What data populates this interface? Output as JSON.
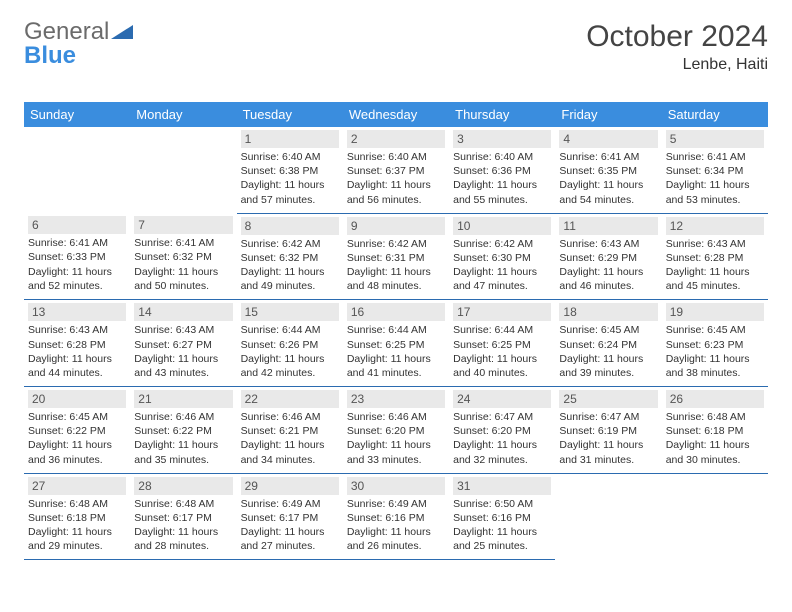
{
  "brand": {
    "word1": "General",
    "word2": "Blue"
  },
  "title": {
    "month": "October 2024",
    "location": "Lenbe, Haiti"
  },
  "colors": {
    "header_bg": "#3a8dde",
    "header_text": "#ffffff",
    "day_border": "#2b6bb0",
    "daynum_bg": "#e9e9e9",
    "body_text": "#333333",
    "logo_gray": "#6b6b6b",
    "logo_blue": "#3a8dde"
  },
  "columns": [
    "Sunday",
    "Monday",
    "Tuesday",
    "Wednesday",
    "Thursday",
    "Friday",
    "Saturday"
  ],
  "weeks": [
    [
      null,
      null,
      {
        "n": "1",
        "sr": "Sunrise: 6:40 AM",
        "ss": "Sunset: 6:38 PM",
        "dl": "Daylight: 11 hours and 57 minutes."
      },
      {
        "n": "2",
        "sr": "Sunrise: 6:40 AM",
        "ss": "Sunset: 6:37 PM",
        "dl": "Daylight: 11 hours and 56 minutes."
      },
      {
        "n": "3",
        "sr": "Sunrise: 6:40 AM",
        "ss": "Sunset: 6:36 PM",
        "dl": "Daylight: 11 hours and 55 minutes."
      },
      {
        "n": "4",
        "sr": "Sunrise: 6:41 AM",
        "ss": "Sunset: 6:35 PM",
        "dl": "Daylight: 11 hours and 54 minutes."
      },
      {
        "n": "5",
        "sr": "Sunrise: 6:41 AM",
        "ss": "Sunset: 6:34 PM",
        "dl": "Daylight: 11 hours and 53 minutes."
      }
    ],
    [
      {
        "n": "6",
        "sr": "Sunrise: 6:41 AM",
        "ss": "Sunset: 6:33 PM",
        "dl": "Daylight: 11 hours and 52 minutes."
      },
      {
        "n": "7",
        "sr": "Sunrise: 6:41 AM",
        "ss": "Sunset: 6:32 PM",
        "dl": "Daylight: 11 hours and 50 minutes."
      },
      {
        "n": "8",
        "sr": "Sunrise: 6:42 AM",
        "ss": "Sunset: 6:32 PM",
        "dl": "Daylight: 11 hours and 49 minutes."
      },
      {
        "n": "9",
        "sr": "Sunrise: 6:42 AM",
        "ss": "Sunset: 6:31 PM",
        "dl": "Daylight: 11 hours and 48 minutes."
      },
      {
        "n": "10",
        "sr": "Sunrise: 6:42 AM",
        "ss": "Sunset: 6:30 PM",
        "dl": "Daylight: 11 hours and 47 minutes."
      },
      {
        "n": "11",
        "sr": "Sunrise: 6:43 AM",
        "ss": "Sunset: 6:29 PM",
        "dl": "Daylight: 11 hours and 46 minutes."
      },
      {
        "n": "12",
        "sr": "Sunrise: 6:43 AM",
        "ss": "Sunset: 6:28 PM",
        "dl": "Daylight: 11 hours and 45 minutes."
      }
    ],
    [
      {
        "n": "13",
        "sr": "Sunrise: 6:43 AM",
        "ss": "Sunset: 6:28 PM",
        "dl": "Daylight: 11 hours and 44 minutes."
      },
      {
        "n": "14",
        "sr": "Sunrise: 6:43 AM",
        "ss": "Sunset: 6:27 PM",
        "dl": "Daylight: 11 hours and 43 minutes."
      },
      {
        "n": "15",
        "sr": "Sunrise: 6:44 AM",
        "ss": "Sunset: 6:26 PM",
        "dl": "Daylight: 11 hours and 42 minutes."
      },
      {
        "n": "16",
        "sr": "Sunrise: 6:44 AM",
        "ss": "Sunset: 6:25 PM",
        "dl": "Daylight: 11 hours and 41 minutes."
      },
      {
        "n": "17",
        "sr": "Sunrise: 6:44 AM",
        "ss": "Sunset: 6:25 PM",
        "dl": "Daylight: 11 hours and 40 minutes."
      },
      {
        "n": "18",
        "sr": "Sunrise: 6:45 AM",
        "ss": "Sunset: 6:24 PM",
        "dl": "Daylight: 11 hours and 39 minutes."
      },
      {
        "n": "19",
        "sr": "Sunrise: 6:45 AM",
        "ss": "Sunset: 6:23 PM",
        "dl": "Daylight: 11 hours and 38 minutes."
      }
    ],
    [
      {
        "n": "20",
        "sr": "Sunrise: 6:45 AM",
        "ss": "Sunset: 6:22 PM",
        "dl": "Daylight: 11 hours and 36 minutes."
      },
      {
        "n": "21",
        "sr": "Sunrise: 6:46 AM",
        "ss": "Sunset: 6:22 PM",
        "dl": "Daylight: 11 hours and 35 minutes."
      },
      {
        "n": "22",
        "sr": "Sunrise: 6:46 AM",
        "ss": "Sunset: 6:21 PM",
        "dl": "Daylight: 11 hours and 34 minutes."
      },
      {
        "n": "23",
        "sr": "Sunrise: 6:46 AM",
        "ss": "Sunset: 6:20 PM",
        "dl": "Daylight: 11 hours and 33 minutes."
      },
      {
        "n": "24",
        "sr": "Sunrise: 6:47 AM",
        "ss": "Sunset: 6:20 PM",
        "dl": "Daylight: 11 hours and 32 minutes."
      },
      {
        "n": "25",
        "sr": "Sunrise: 6:47 AM",
        "ss": "Sunset: 6:19 PM",
        "dl": "Daylight: 11 hours and 31 minutes."
      },
      {
        "n": "26",
        "sr": "Sunrise: 6:48 AM",
        "ss": "Sunset: 6:18 PM",
        "dl": "Daylight: 11 hours and 30 minutes."
      }
    ],
    [
      {
        "n": "27",
        "sr": "Sunrise: 6:48 AM",
        "ss": "Sunset: 6:18 PM",
        "dl": "Daylight: 11 hours and 29 minutes."
      },
      {
        "n": "28",
        "sr": "Sunrise: 6:48 AM",
        "ss": "Sunset: 6:17 PM",
        "dl": "Daylight: 11 hours and 28 minutes."
      },
      {
        "n": "29",
        "sr": "Sunrise: 6:49 AM",
        "ss": "Sunset: 6:17 PM",
        "dl": "Daylight: 11 hours and 27 minutes."
      },
      {
        "n": "30",
        "sr": "Sunrise: 6:49 AM",
        "ss": "Sunset: 6:16 PM",
        "dl": "Daylight: 11 hours and 26 minutes."
      },
      {
        "n": "31",
        "sr": "Sunrise: 6:50 AM",
        "ss": "Sunset: 6:16 PM",
        "dl": "Daylight: 11 hours and 25 minutes."
      },
      null,
      null
    ]
  ]
}
